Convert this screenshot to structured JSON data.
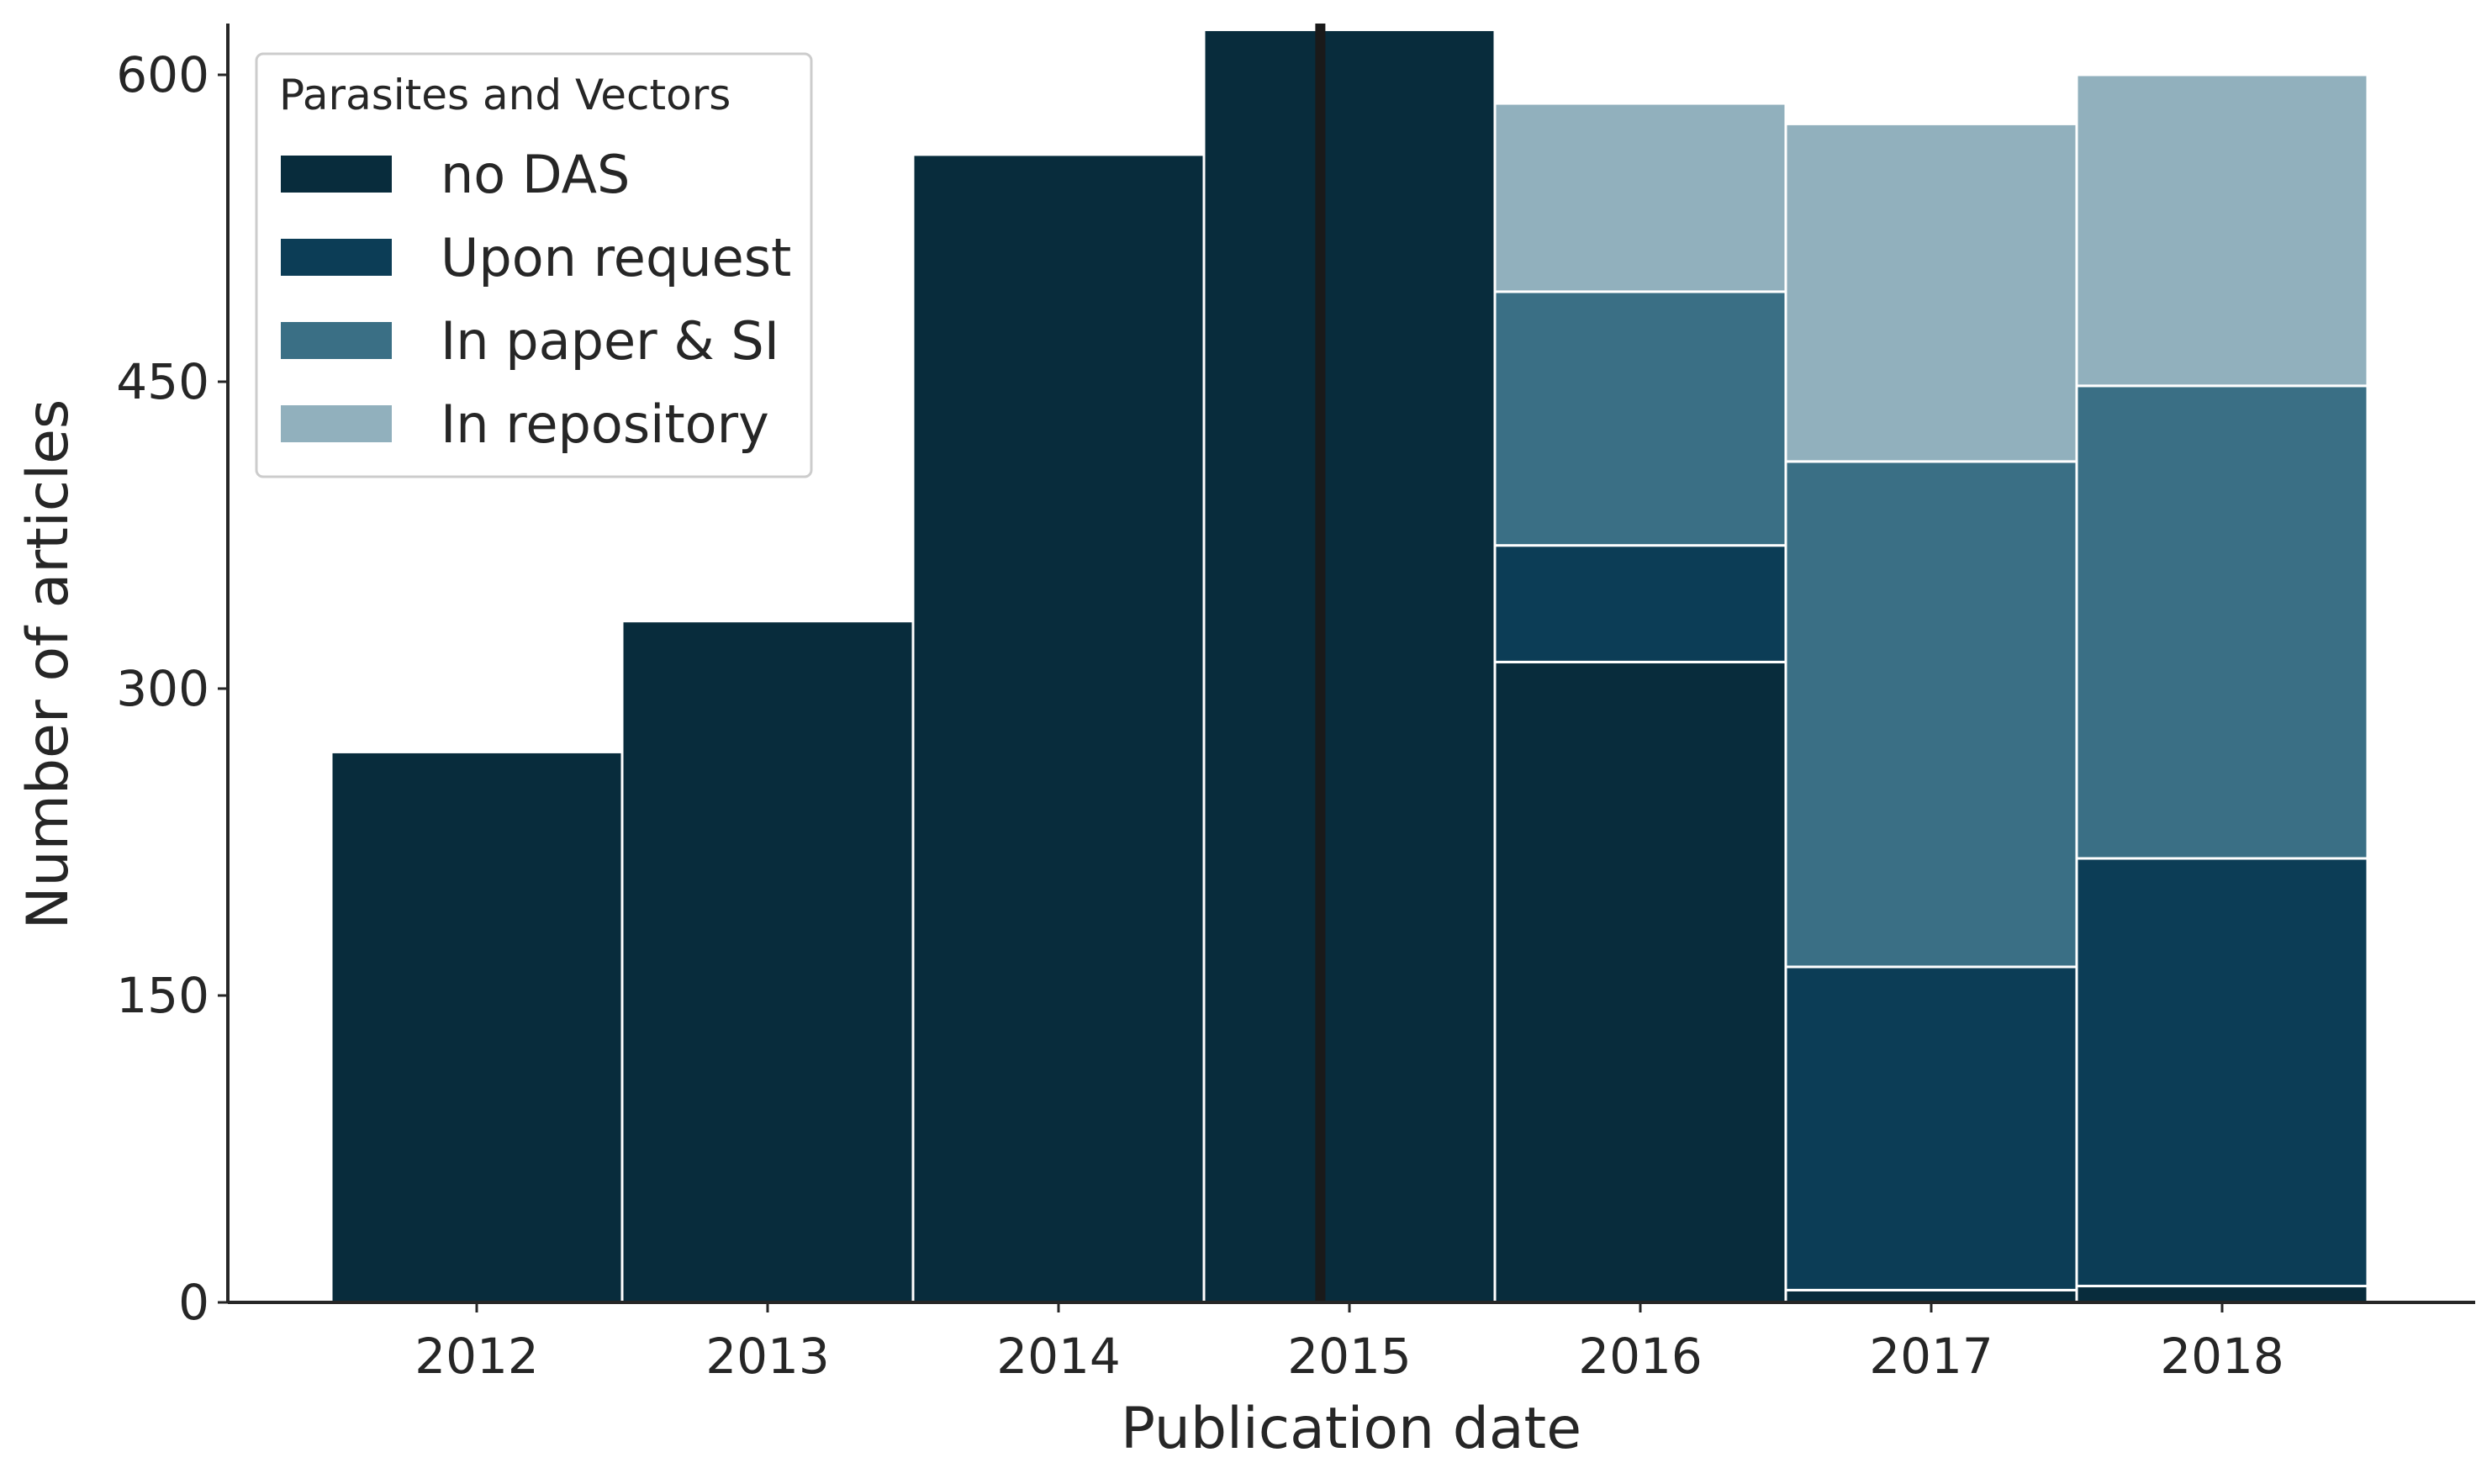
{
  "chart_data": {
    "type": "bar",
    "stacked": true,
    "categories": [
      "2012",
      "2013",
      "2014",
      "2015",
      "2016",
      "2017",
      "2018"
    ],
    "series": [
      {
        "name": "no DAS",
        "color": "#082c3c",
        "values": [
          269,
          333,
          561,
          622,
          313,
          6,
          8
        ]
      },
      {
        "name": "Upon request",
        "color": "#0c3d56",
        "values": [
          0,
          0,
          0,
          0,
          57,
          158,
          209
        ]
      },
      {
        "name": "In paper & SI",
        "color": "#3a6f85",
        "values": [
          0,
          0,
          0,
          0,
          124,
          247,
          231
        ]
      },
      {
        "name": "In repository",
        "color": "#91b0bd",
        "values": [
          0,
          0,
          0,
          0,
          92,
          165,
          152
        ]
      }
    ],
    "title": "",
    "xlabel": "Publication date",
    "ylabel": "Number of articles",
    "ylim": [
      0,
      625
    ],
    "yticks": [
      0,
      150,
      300,
      450,
      600
    ],
    "reference_line": {
      "x": 2014.9,
      "color": "#1a1a1a"
    },
    "legend": {
      "title": "Parasites and Vectors",
      "placement": "top-left"
    },
    "grid": false
  }
}
